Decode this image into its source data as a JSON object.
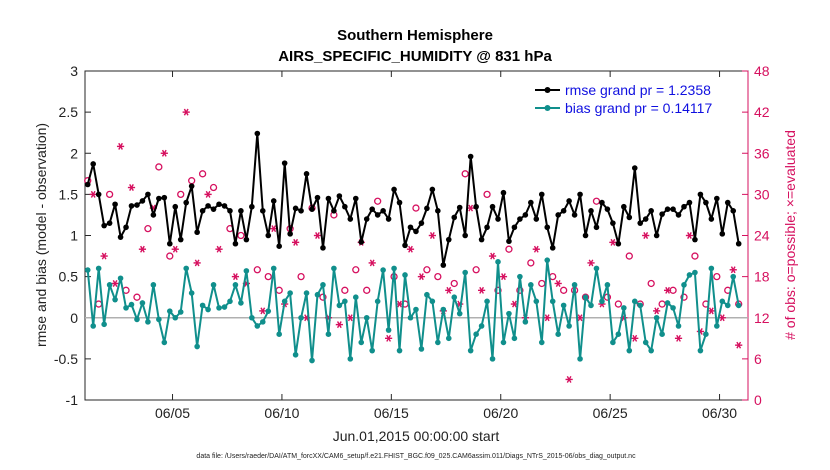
{
  "chart_data": {
    "type": "line",
    "title": "Southern Hemisphere",
    "subtitle": "AIRS_SPECIFIC_HUMIDITY @ 831 hPa",
    "xlabel": "Jun.01,2015 00:00:00 start",
    "ylabel": "rmse and bias (model - observation)",
    "ylabel_right": "# of obs: o=possible; ×=evaluated",
    "footnote": "data file: /Users/raeder/DAI/ATM_forcXX/CAM6_setup/f.e21.FHIST_BGC.f09_025.CAM6assim.011/Diags_NTrS_2015-06/obs_diag_output.nc",
    "xlim": [
      1,
      31.3
    ],
    "ylim": [
      -1,
      3
    ],
    "ylim_right": [
      0,
      48
    ],
    "x_ticks": [
      5,
      10,
      15,
      20,
      25,
      30
    ],
    "x_tick_labels": [
      "06/05",
      "06/10",
      "06/15",
      "06/20",
      "06/25",
      "06/30"
    ],
    "y_ticks": [
      -1,
      -0.5,
      0,
      0.5,
      1,
      1.5,
      2,
      2.5,
      3
    ],
    "y_tick_labels": [
      "-1",
      "-0.5",
      "0",
      "0.5",
      "1",
      "1.5",
      "2",
      "2.5",
      "3"
    ],
    "y_right_ticks": [
      0,
      6,
      12,
      18,
      24,
      30,
      36,
      42,
      48
    ],
    "y_right_tick_labels": [
      "0",
      "6",
      "12",
      "18",
      "24",
      "30",
      "36",
      "42",
      "48"
    ],
    "series": [
      {
        "name": "rmse grand pr = 1.2358",
        "color": "#000000",
        "marker": "star",
        "x": [
          1.125,
          1.375,
          1.625,
          1.875,
          2.125,
          2.375,
          2.625,
          2.875,
          3.125,
          3.375,
          3.625,
          3.875,
          4.125,
          4.375,
          4.625,
          4.875,
          5.125,
          5.375,
          5.625,
          5.875,
          6.125,
          6.375,
          6.625,
          6.875,
          7.125,
          7.375,
          7.625,
          7.875,
          8.125,
          8.375,
          8.625,
          8.875,
          9.125,
          9.375,
          9.625,
          9.875,
          10.125,
          10.375,
          10.625,
          10.875,
          11.125,
          11.375,
          11.625,
          11.875,
          12.125,
          12.375,
          12.625,
          12.875,
          13.125,
          13.375,
          13.625,
          13.875,
          14.125,
          14.375,
          14.625,
          14.875,
          15.125,
          15.375,
          15.625,
          15.875,
          16.125,
          16.375,
          16.625,
          16.875,
          17.125,
          17.375,
          17.625,
          17.875,
          18.125,
          18.375,
          18.625,
          18.875,
          19.125,
          19.375,
          19.625,
          19.875,
          20.125,
          20.375,
          20.625,
          20.875,
          21.125,
          21.375,
          21.625,
          21.875,
          22.125,
          22.375,
          22.625,
          22.875,
          23.125,
          23.375,
          23.625,
          23.875,
          24.125,
          24.375,
          24.625,
          24.875,
          25.125,
          25.375,
          25.625,
          25.875,
          26.125,
          26.375,
          26.625,
          26.875,
          27.125,
          27.375,
          27.625,
          27.875,
          28.125,
          28.375,
          28.625,
          28.875,
          29.125,
          29.375,
          29.625,
          29.875,
          30.125,
          30.375,
          30.625,
          30.875
        ],
        "y": [
          1.62,
          1.87,
          1.5,
          1.12,
          1.15,
          1.38,
          0.98,
          1.1,
          1.36,
          1.37,
          1.42,
          1.5,
          1.25,
          1.45,
          1.46,
          0.9,
          1.35,
          0.95,
          1.4,
          1.6,
          1.04,
          1.3,
          1.36,
          1.32,
          1.38,
          1.36,
          1.3,
          0.9,
          1.3,
          0.95,
          1.35,
          2.24,
          1.3,
          1.0,
          1.42,
          0.87,
          1.88,
          1.02,
          1.33,
          1.3,
          1.75,
          1.32,
          1.46,
          0.85,
          1.45,
          1.3,
          1.48,
          1.35,
          1.2,
          1.45,
          0.92,
          1.2,
          1.32,
          1.25,
          1.3,
          1.2,
          1.56,
          1.4,
          0.88,
          1.1,
          1.05,
          1.15,
          1.33,
          1.56,
          1.3,
          0.64,
          0.95,
          1.22,
          1.34,
          1.0,
          1.96,
          1.35,
          0.95,
          1.1,
          1.35,
          1.2,
          1.52,
          0.93,
          1.1,
          1.2,
          1.25,
          1.4,
          1.2,
          1.5,
          1.1,
          0.85,
          1.25,
          1.3,
          1.42,
          1.25,
          1.5,
          1.0,
          1.3,
          1.1,
          1.4,
          1.32,
          1.15,
          0.9,
          1.35,
          1.22,
          1.82,
          1.15,
          1.2,
          1.3,
          1.0,
          1.26,
          1.32,
          1.32,
          1.25,
          1.35,
          1.4,
          0.95,
          1.5,
          1.4,
          1.2,
          1.45,
          1.02,
          1.4,
          1.3,
          0.9
        ]
      },
      {
        "name": "bias grand pr = 0.14117",
        "color": "#108f8c",
        "marker": "dot",
        "x": [
          1.125,
          1.375,
          1.625,
          1.875,
          2.125,
          2.375,
          2.625,
          2.875,
          3.125,
          3.375,
          3.625,
          3.875,
          4.125,
          4.375,
          4.625,
          4.875,
          5.125,
          5.375,
          5.625,
          5.875,
          6.125,
          6.375,
          6.625,
          6.875,
          7.125,
          7.375,
          7.625,
          7.875,
          8.125,
          8.375,
          8.625,
          8.875,
          9.125,
          9.375,
          9.625,
          9.875,
          10.125,
          10.375,
          10.625,
          10.875,
          11.125,
          11.375,
          11.625,
          11.875,
          12.125,
          12.375,
          12.625,
          12.875,
          13.125,
          13.375,
          13.625,
          13.875,
          14.125,
          14.375,
          14.625,
          14.875,
          15.125,
          15.375,
          15.625,
          15.875,
          16.125,
          16.375,
          16.625,
          16.875,
          17.125,
          17.375,
          17.625,
          17.875,
          18.125,
          18.375,
          18.625,
          18.875,
          19.125,
          19.375,
          19.625,
          19.875,
          20.125,
          20.375,
          20.625,
          20.875,
          21.125,
          21.375,
          21.625,
          21.875,
          22.125,
          22.375,
          22.625,
          22.875,
          23.125,
          23.375,
          23.625,
          23.875,
          24.125,
          24.375,
          24.625,
          24.875,
          25.125,
          25.375,
          25.625,
          25.875,
          26.125,
          26.375,
          26.625,
          26.875,
          27.125,
          27.375,
          27.625,
          27.875,
          28.125,
          28.375,
          28.625,
          28.875,
          29.125,
          29.375,
          29.625,
          29.875,
          30.125,
          30.375,
          30.625,
          30.875
        ],
        "y": [
          0.58,
          -0.1,
          0.6,
          -0.08,
          0.4,
          0.22,
          0.48,
          0.12,
          0.16,
          -0.02,
          0.18,
          -0.05,
          0.4,
          -0.02,
          -0.3,
          0.08,
          0.0,
          0.07,
          0.6,
          0.3,
          -0.35,
          0.15,
          0.1,
          0.4,
          0.12,
          0.13,
          0.2,
          0.4,
          0.18,
          0.57,
          0.0,
          -0.1,
          -0.05,
          0.08,
          0.6,
          -0.2,
          0.2,
          0.3,
          -0.45,
          0.0,
          0.3,
          -0.52,
          0.28,
          0.4,
          -0.2,
          0.6,
          0.15,
          0.2,
          -0.5,
          0.25,
          -0.3,
          0.0,
          -0.4,
          0.2,
          0.58,
          -0.15,
          0.6,
          -0.4,
          0.52,
          0.0,
          0.1,
          -0.38,
          0.28,
          0.2,
          -0.3,
          0.1,
          -0.25,
          0.25,
          0.05,
          0.55,
          -0.4,
          -0.2,
          -0.1,
          0.2,
          -0.5,
          0.68,
          -0.3,
          0.05,
          -0.25,
          0.5,
          -0.05,
          0.4,
          0.2,
          -0.3,
          0.7,
          0.2,
          -0.2,
          0.15,
          -0.1,
          0.4,
          -0.5,
          0.25,
          0.15,
          0.6,
          0.2,
          0.4,
          -0.3,
          -0.2,
          0.12,
          -0.4,
          0.2,
          0.15,
          -0.3,
          -0.4,
          0.0,
          -0.2,
          0.18,
          0.12,
          -0.1,
          0.4,
          0.52,
          0.55,
          -0.4,
          -0.2,
          0.6,
          -0.1,
          0.2,
          0.15,
          0.5,
          0.15
        ]
      },
      {
        "name": "",
        "color": "#d6105f",
        "marker": "circle",
        "axis": "right",
        "x": [
          1.125,
          1.625,
          2.125,
          2.875,
          3.375,
          3.875,
          4.375,
          4.875,
          5.375,
          5.875,
          6.375,
          6.875,
          7.625,
          8.125,
          8.875,
          9.375,
          9.875,
          10.375,
          10.875,
          11.375,
          11.875,
          12.375,
          12.875,
          13.375,
          13.875,
          14.375,
          15.125,
          15.625,
          16.125,
          16.625,
          17.125,
          17.875,
          18.375,
          18.875,
          19.375,
          19.875,
          20.375,
          20.875,
          21.375,
          21.875,
          22.375,
          22.875,
          23.375,
          23.875,
          24.375,
          24.875,
          25.375,
          25.875,
          26.375,
          26.875,
          27.375,
          27.875,
          28.375,
          28.875,
          29.375,
          29.875,
          30.375,
          30.875
        ],
        "y": [
          32,
          14,
          30,
          16,
          15,
          25,
          34,
          21,
          30,
          32,
          33,
          31,
          25,
          24,
          19,
          18,
          16,
          25,
          18,
          28,
          15,
          27,
          16,
          19,
          16,
          29,
          18,
          14,
          28,
          19,
          18,
          17,
          33,
          19,
          30,
          16,
          22,
          16,
          20,
          17,
          18,
          16,
          16,
          15,
          29,
          15,
          14,
          21,
          14,
          17,
          14,
          16,
          15,
          21,
          14,
          18,
          16,
          14
        ]
      },
      {
        "name": "",
        "color": "#d6105f",
        "marker": "asterisk",
        "axis": "right",
        "x": [
          1.375,
          1.875,
          2.375,
          2.625,
          3.125,
          3.625,
          4.125,
          4.625,
          5.125,
          5.625,
          6.125,
          6.625,
          7.125,
          7.875,
          8.375,
          9.125,
          9.625,
          10.125,
          10.625,
          11.125,
          11.625,
          12.125,
          12.625,
          13.125,
          13.625,
          14.125,
          14.875,
          15.375,
          15.875,
          16.375,
          16.875,
          17.375,
          17.625,
          18.125,
          18.625,
          19.125,
          19.625,
          20.125,
          20.625,
          21.125,
          21.625,
          22.125,
          22.625,
          23.125,
          23.625,
          24.125,
          24.625,
          25.125,
          25.625,
          26.125,
          26.625,
          27.125,
          27.625,
          28.125,
          28.625,
          29.125,
          29.625,
          30.125,
          30.625,
          30.875
        ],
        "y": [
          30,
          21,
          17,
          37,
          31,
          22,
          28,
          36,
          22,
          42,
          20,
          30,
          22,
          18,
          17,
          13,
          25,
          14,
          23,
          12,
          24,
          12,
          11,
          12,
          23,
          20,
          9,
          14,
          22,
          18,
          24,
          13,
          16,
          14,
          28,
          16,
          21,
          18,
          14,
          12,
          22,
          12,
          17,
          3,
          12,
          20,
          14,
          23,
          12,
          9,
          24,
          13,
          16,
          9,
          24,
          10,
          13,
          12,
          19,
          8
        ]
      }
    ]
  }
}
